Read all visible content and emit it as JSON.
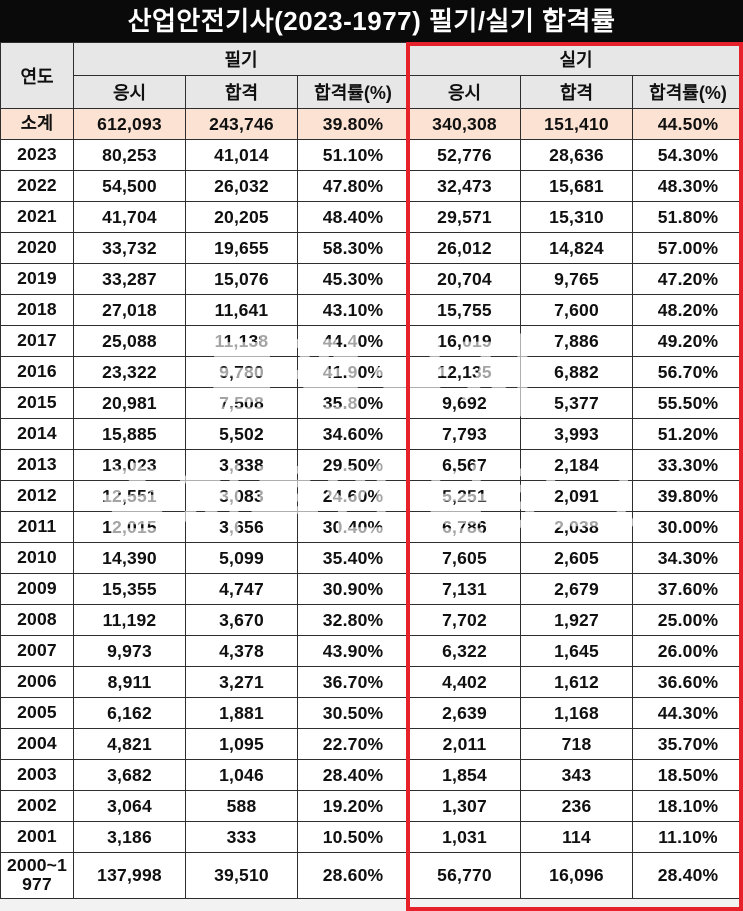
{
  "title": "산업안전기사(2023-1977) 필기/실기 합격률",
  "table": {
    "col_year": "연도",
    "group_written": "필기",
    "group_practical": "실기",
    "sub_headers": [
      "응시",
      "합격",
      "합격률(%)"
    ]
  },
  "watermark": {
    "line1": "불펌금지",
    "line2": "출처루인 블로그"
  },
  "colors": {
    "title_bg": "#0a0a0a",
    "header_bg": "#e7e7e7",
    "subtotal_bg": "#fbe2d2",
    "practical_outline": "#e62129",
    "grid_border": "#2e2e2e"
  },
  "chart_data": {
    "type": "table",
    "title": "산업안전기사(2023-1977) 필기/실기 합격률",
    "column_groups": [
      "필기",
      "실기"
    ],
    "columns": [
      "연도",
      "필기 응시",
      "필기 합격",
      "필기 합격률(%)",
      "실기 응시",
      "실기 합격",
      "실기 합격률(%)"
    ],
    "rows": [
      {
        "year": "소계",
        "highlight": true,
        "values": [
          "612,093",
          "243,746",
          "39.80%",
          "340,308",
          "151,410",
          "44.50%"
        ]
      },
      {
        "year": "2023",
        "highlight": false,
        "values": [
          "80,253",
          "41,014",
          "51.10%",
          "52,776",
          "28,636",
          "54.30%"
        ]
      },
      {
        "year": "2022",
        "highlight": false,
        "values": [
          "54,500",
          "26,032",
          "47.80%",
          "32,473",
          "15,681",
          "48.30%"
        ]
      },
      {
        "year": "2021",
        "highlight": false,
        "values": [
          "41,704",
          "20,205",
          "48.40%",
          "29,571",
          "15,310",
          "51.80%"
        ]
      },
      {
        "year": "2020",
        "highlight": false,
        "values": [
          "33,732",
          "19,655",
          "58.30%",
          "26,012",
          "14,824",
          "57.00%"
        ]
      },
      {
        "year": "2019",
        "highlight": false,
        "values": [
          "33,287",
          "15,076",
          "45.30%",
          "20,704",
          "9,765",
          "47.20%"
        ]
      },
      {
        "year": "2018",
        "highlight": false,
        "values": [
          "27,018",
          "11,641",
          "43.10%",
          "15,755",
          "7,600",
          "48.20%"
        ]
      },
      {
        "year": "2017",
        "highlight": false,
        "values": [
          "25,088",
          "11,138",
          "44.40%",
          "16,019",
          "7,886",
          "49.20%"
        ]
      },
      {
        "year": "2016",
        "highlight": false,
        "values": [
          "23,322",
          "9,780",
          "41.90%",
          "12,135",
          "6,882",
          "56.70%"
        ]
      },
      {
        "year": "2015",
        "highlight": false,
        "values": [
          "20,981",
          "7,508",
          "35.80%",
          "9,692",
          "5,377",
          "55.50%"
        ]
      },
      {
        "year": "2014",
        "highlight": false,
        "values": [
          "15,885",
          "5,502",
          "34.60%",
          "7,793",
          "3,993",
          "51.20%"
        ]
      },
      {
        "year": "2013",
        "highlight": false,
        "values": [
          "13,023",
          "3,838",
          "29.50%",
          "6,567",
          "2,184",
          "33.30%"
        ]
      },
      {
        "year": "2012",
        "highlight": false,
        "values": [
          "12,551",
          "3,083",
          "24.60%",
          "5,251",
          "2,091",
          "39.80%"
        ]
      },
      {
        "year": "2011",
        "highlight": false,
        "values": [
          "12,015",
          "3,656",
          "30.40%",
          "6,786",
          "2,038",
          "30.00%"
        ]
      },
      {
        "year": "2010",
        "highlight": false,
        "values": [
          "14,390",
          "5,099",
          "35.40%",
          "7,605",
          "2,605",
          "34.30%"
        ]
      },
      {
        "year": "2009",
        "highlight": false,
        "values": [
          "15,355",
          "4,747",
          "30.90%",
          "7,131",
          "2,679",
          "37.60%"
        ]
      },
      {
        "year": "2008",
        "highlight": false,
        "values": [
          "11,192",
          "3,670",
          "32.80%",
          "7,702",
          "1,927",
          "25.00%"
        ]
      },
      {
        "year": "2007",
        "highlight": false,
        "values": [
          "9,973",
          "4,378",
          "43.90%",
          "6,322",
          "1,645",
          "26.00%"
        ]
      },
      {
        "year": "2006",
        "highlight": false,
        "values": [
          "8,911",
          "3,271",
          "36.70%",
          "4,402",
          "1,612",
          "36.60%"
        ]
      },
      {
        "year": "2005",
        "highlight": false,
        "values": [
          "6,162",
          "1,881",
          "30.50%",
          "2,639",
          "1,168",
          "44.30%"
        ]
      },
      {
        "year": "2004",
        "highlight": false,
        "values": [
          "4,821",
          "1,095",
          "22.70%",
          "2,011",
          "718",
          "35.70%"
        ]
      },
      {
        "year": "2003",
        "highlight": false,
        "values": [
          "3,682",
          "1,046",
          "28.40%",
          "1,854",
          "343",
          "18.50%"
        ]
      },
      {
        "year": "2002",
        "highlight": false,
        "values": [
          "3,064",
          "588",
          "19.20%",
          "1,307",
          "236",
          "18.10%"
        ]
      },
      {
        "year": "2001",
        "highlight": false,
        "values": [
          "3,186",
          "333",
          "10.50%",
          "1,031",
          "114",
          "11.10%"
        ]
      },
      {
        "year": "2000~1977",
        "highlight": false,
        "values": [
          "137,998",
          "39,510",
          "28.60%",
          "56,770",
          "16,096",
          "28.40%"
        ]
      }
    ]
  }
}
